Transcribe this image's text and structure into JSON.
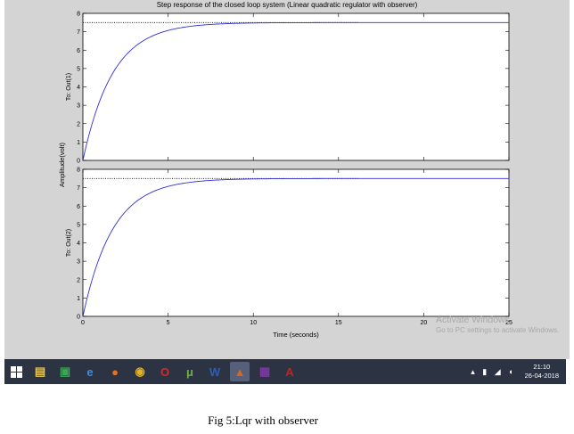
{
  "figure_title": "Step response of the closed loop system (Linear quadratic regulator with observer)",
  "chart_data": [
    {
      "type": "line",
      "ylabel": "To: Out(1)",
      "xlim": [
        0,
        25
      ],
      "ylim": [
        0,
        8
      ],
      "xticks": [
        0,
        5,
        10,
        15,
        20,
        25
      ],
      "yticks": [
        0,
        1,
        2,
        3,
        4,
        5,
        6,
        7,
        8
      ],
      "final_value": 7.5,
      "time_constant": 1.75,
      "series": [
        {
          "x": [
            0,
            0.5,
            1,
            1.5,
            2,
            2.5,
            3,
            3.5,
            4,
            5,
            6,
            7,
            8,
            10,
            12,
            15,
            20,
            25
          ],
          "y": [
            0,
            1.87,
            3.26,
            4.31,
            5.1,
            5.69,
            6.13,
            6.48,
            6.72,
            7.06,
            7.26,
            7.37,
            7.43,
            7.48,
            7.5,
            7.5,
            7.5,
            7.5
          ]
        }
      ],
      "steady_state_marker": {
        "x": [
          0,
          16.2
        ],
        "y": 7.5
      }
    },
    {
      "type": "line",
      "ylabel": "To: Out(2)",
      "xlabel": "Time (seconds)",
      "xlim": [
        0,
        25
      ],
      "ylim": [
        0,
        8
      ],
      "xticks": [
        0,
        5,
        10,
        15,
        20,
        25
      ],
      "yticks": [
        0,
        1,
        2,
        3,
        4,
        5,
        6,
        7,
        8
      ],
      "final_value": 7.5,
      "time_constant": 1.75,
      "series": [
        {
          "x": [
            0,
            0.5,
            1,
            1.5,
            2,
            2.5,
            3,
            3.5,
            4,
            5,
            6,
            7,
            8,
            10,
            12,
            15,
            20,
            25
          ],
          "y": [
            0,
            1.87,
            3.26,
            4.31,
            5.1,
            5.69,
            6.13,
            6.48,
            6.72,
            7.06,
            7.26,
            7.37,
            7.43,
            7.48,
            7.5,
            7.5,
            7.5,
            7.5
          ]
        }
      ],
      "steady_state_marker": {
        "x": [
          0,
          16.2
        ],
        "y": 7.5
      }
    }
  ],
  "shared_ylabel": "Amplitude(volt)",
  "watermark": {
    "title": "Activate Windows",
    "subtitle": "Go to PC settings to activate Windows."
  },
  "taskbar": {
    "apps": [
      {
        "name": "file-explorer-icon",
        "glyph": "▤",
        "color": "#e8c35a"
      },
      {
        "name": "store-icon",
        "glyph": "▣",
        "color": "#3aa655"
      },
      {
        "name": "internet-explorer-icon",
        "glyph": "e",
        "color": "#3a8de0"
      },
      {
        "name": "firefox-icon",
        "glyph": "●",
        "color": "#e8711d"
      },
      {
        "name": "chrome-icon",
        "glyph": "◉",
        "color": "#e3b324"
      },
      {
        "name": "opera-icon",
        "glyph": "O",
        "color": "#d42a2a"
      },
      {
        "name": "utorrent-icon",
        "glyph": "μ",
        "color": "#6bb33a"
      },
      {
        "name": "word-icon",
        "glyph": "W",
        "color": "#2b5fb4"
      },
      {
        "name": "matlab-icon",
        "glyph": "▲",
        "color": "#d9661f"
      },
      {
        "name": "winrar-icon",
        "glyph": "▦",
        "color": "#7a3aa0"
      },
      {
        "name": "acrobat-icon",
        "glyph": "A",
        "color": "#c8201e"
      }
    ],
    "active_app": "matlab-icon",
    "tray_glyphs": "▴ ▮ ◢ ◖",
    "time": "21:10",
    "date": "26-04-2018"
  },
  "caption": "Fig 5:Lqr with observer"
}
